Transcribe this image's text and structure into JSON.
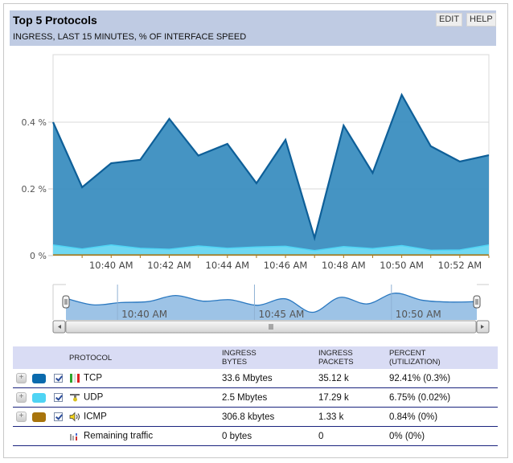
{
  "widget": {
    "title": "Top 5 Protocols",
    "subtitle": "INGRESS, LAST 15 MINUTES, % OF INTERFACE SPEED",
    "edit_label": "EDIT",
    "help_label": "HELP"
  },
  "chart_data": {
    "type": "area",
    "stacked": true,
    "title": "Top 5 Protocols",
    "subtitle": "INGRESS, LAST 15 MINUTES, % OF INTERFACE SPEED",
    "xlabel": "",
    "ylabel": "",
    "y_tick_labels": [
      "0 %",
      "0.2 %",
      "0.4 %"
    ],
    "y_ticks": [
      0,
      0.2,
      0.4
    ],
    "ylim": [
      0,
      0.6
    ],
    "grid": true,
    "x": [
      "10:38",
      "10:39",
      "10:40",
      "10:41",
      "10:42",
      "10:43",
      "10:44",
      "10:45",
      "10:46",
      "10:47",
      "10:48",
      "10:49",
      "10:50",
      "10:51",
      "10:52",
      "10:53"
    ],
    "x_tick_labels": [
      "10:40 AM",
      "10:42 AM",
      "10:44 AM",
      "10:46 AM",
      "10:48 AM",
      "10:50 AM",
      "10:52 AM"
    ],
    "series": [
      {
        "name": "ICMP",
        "color": "#a87a1c",
        "values": [
          0.002,
          0.002,
          0.002,
          0.002,
          0.002,
          0.002,
          0.002,
          0.002,
          0.002,
          0.002,
          0.002,
          0.002,
          0.002,
          0.002,
          0.002,
          0.002
        ]
      },
      {
        "name": "UDP",
        "color": "#6fd8f2",
        "values": [
          0.03,
          0.018,
          0.03,
          0.02,
          0.017,
          0.027,
          0.02,
          0.024,
          0.026,
          0.013,
          0.025,
          0.019,
          0.028,
          0.014,
          0.015,
          0.03
        ]
      },
      {
        "name": "TCP",
        "color": "#3b8ec0",
        "values": [
          0.368,
          0.185,
          0.245,
          0.265,
          0.391,
          0.271,
          0.313,
          0.191,
          0.319,
          0.038,
          0.363,
          0.227,
          0.452,
          0.312,
          0.265,
          0.269
        ]
      }
    ],
    "totals": [
      0.4,
      0.205,
      0.277,
      0.287,
      0.41,
      0.3,
      0.335,
      0.217,
      0.347,
      0.053,
      0.39,
      0.248,
      0.482,
      0.328,
      0.282,
      0.301
    ],
    "navigator": {
      "x_tick_labels": [
        "10:40 AM",
        "10:45 AM",
        "10:50 AM"
      ],
      "series": [
        0.36,
        0.22,
        0.27,
        0.29,
        0.42,
        0.3,
        0.33,
        0.21,
        0.35,
        0.06,
        0.38,
        0.24,
        0.47,
        0.32,
        0.28,
        0.29
      ]
    }
  },
  "table": {
    "headers": {
      "protocol": "PROTOCOL",
      "bytes_1": "INGRESS",
      "bytes_2": "BYTES",
      "packets_1": "INGRESS",
      "packets_2": "PACKETS",
      "percent_1": "PERCENT",
      "percent_2": "(UTILIZATION)"
    },
    "rows": [
      {
        "name": "TCP",
        "color": "#0a6aad",
        "checked": true,
        "icon": "tcp-icon",
        "bytes": "33.6 Mbytes",
        "packets": "35.12 k",
        "percent": "92.41% (0.3%)"
      },
      {
        "name": "UDP",
        "color": "#4fd4f4",
        "checked": true,
        "icon": "udp-icon",
        "bytes": "2.5 Mbytes",
        "packets": "17.29 k",
        "percent": "6.75% (0.02%)"
      },
      {
        "name": "ICMP",
        "color": "#a8740c",
        "checked": true,
        "icon": "speaker-icon",
        "bytes": "306.8 kbytes",
        "packets": "1.33 k",
        "percent": "0.84% (0%)"
      }
    ],
    "remaining": {
      "name": "Remaining traffic",
      "icon": "bar-chart-icon",
      "bytes": "0 bytes",
      "packets": "0",
      "percent": "0% (0%)"
    }
  }
}
